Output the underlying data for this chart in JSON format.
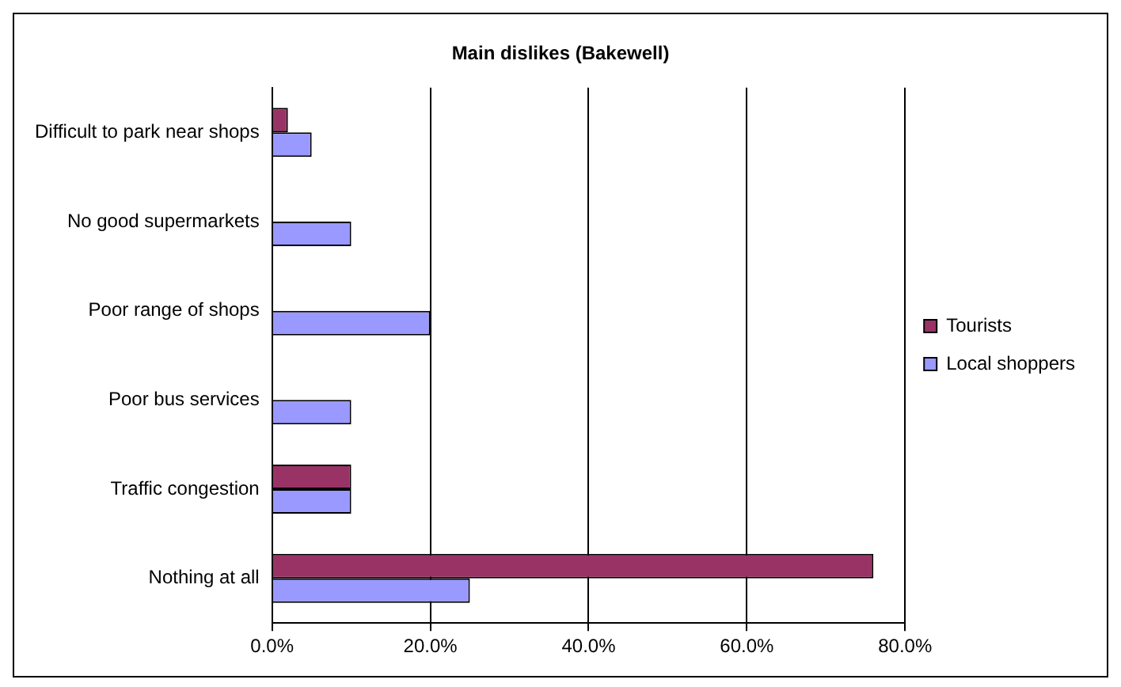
{
  "chart_data": {
    "type": "bar",
    "orientation": "horizontal",
    "title": "Main dislikes (Bakewell)",
    "categories": [
      "Difficult to park near shops",
      "No good supermarkets",
      "Poor range of shops",
      "Poor bus services",
      "Traffic congestion",
      "Nothing at all"
    ],
    "series": [
      {
        "name": "Tourists",
        "color": "#993366",
        "values": [
          2,
          null,
          null,
          null,
          10,
          76
        ]
      },
      {
        "name": "Local shoppers",
        "color": "#9999ff",
        "values": [
          5,
          10,
          20,
          10,
          10,
          25
        ]
      }
    ],
    "xlim": [
      0,
      80
    ],
    "xticks": [
      {
        "value": 0,
        "label": "0.0%"
      },
      {
        "value": 20,
        "label": "20.0%"
      },
      {
        "value": 40,
        "label": "40.0%"
      },
      {
        "value": 60,
        "label": "60.0%"
      },
      {
        "value": 80,
        "label": "80.0%"
      }
    ],
    "grid": "x",
    "legend": "right"
  }
}
